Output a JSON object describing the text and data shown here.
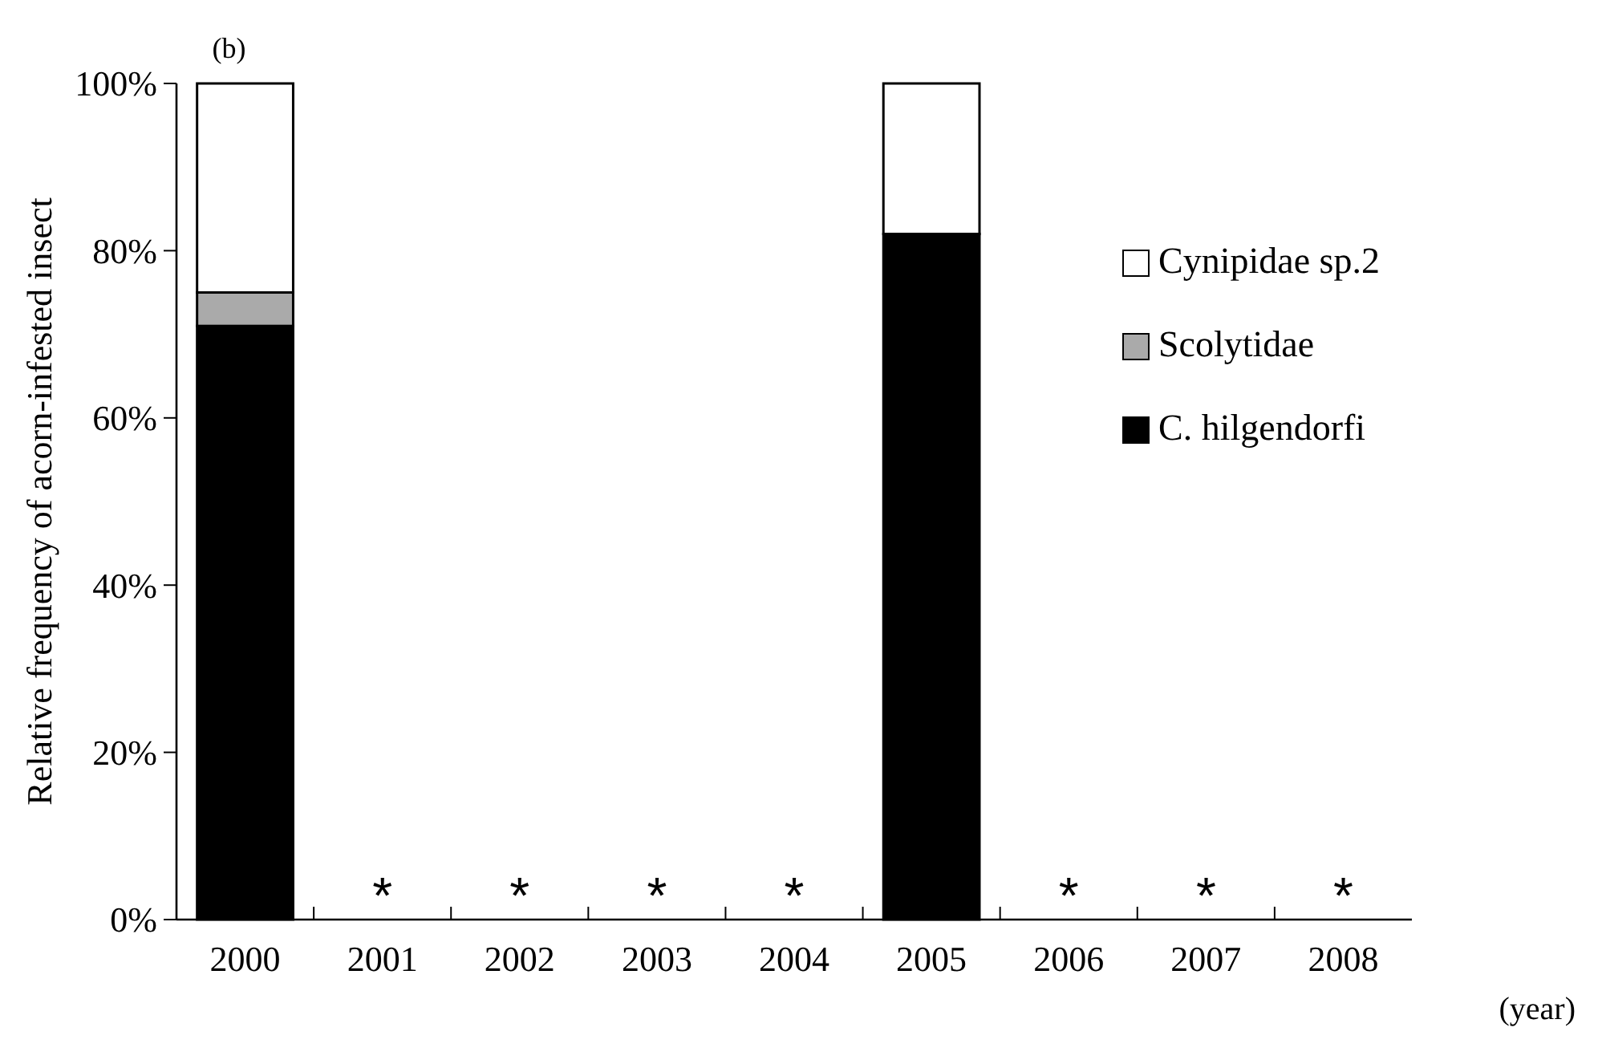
{
  "chart_data": {
    "type": "bar",
    "stacked": true,
    "ylabel": "Relative frequency of acorn-infested insect",
    "categories": [
      "2000",
      "2001",
      "2002",
      "2003",
      "2004",
      "2005",
      "2006",
      "2007",
      "2008"
    ],
    "series": [
      {
        "name": "C. hilgendorfi",
        "color": "#000000",
        "values": [
          71,
          null,
          null,
          null,
          null,
          82,
          null,
          null,
          null
        ]
      },
      {
        "name": "Scolytidae",
        "color": "#aaaaaa",
        "values": [
          4,
          null,
          null,
          null,
          null,
          0,
          null,
          null,
          null
        ]
      },
      {
        "name": "Cynipidae sp.2",
        "color": "#ffffff",
        "values": [
          25,
          null,
          null,
          null,
          null,
          18,
          null,
          null,
          null
        ]
      }
    ],
    "ylim": [
      0,
      100
    ],
    "yticks": [
      {
        "value": 0,
        "label": "0%"
      },
      {
        "value": 20,
        "label": "20%"
      },
      {
        "value": 40,
        "label": "40%"
      },
      {
        "value": 60,
        "label": "60%"
      },
      {
        "value": 80,
        "label": "80%"
      },
      {
        "value": 100,
        "label": "100%"
      }
    ],
    "legend": "right",
    "grid": false,
    "annotations": [
      "(b)",
      "(year)",
      "*",
      "*",
      "*",
      "*",
      "*",
      "*",
      "*"
    ]
  }
}
